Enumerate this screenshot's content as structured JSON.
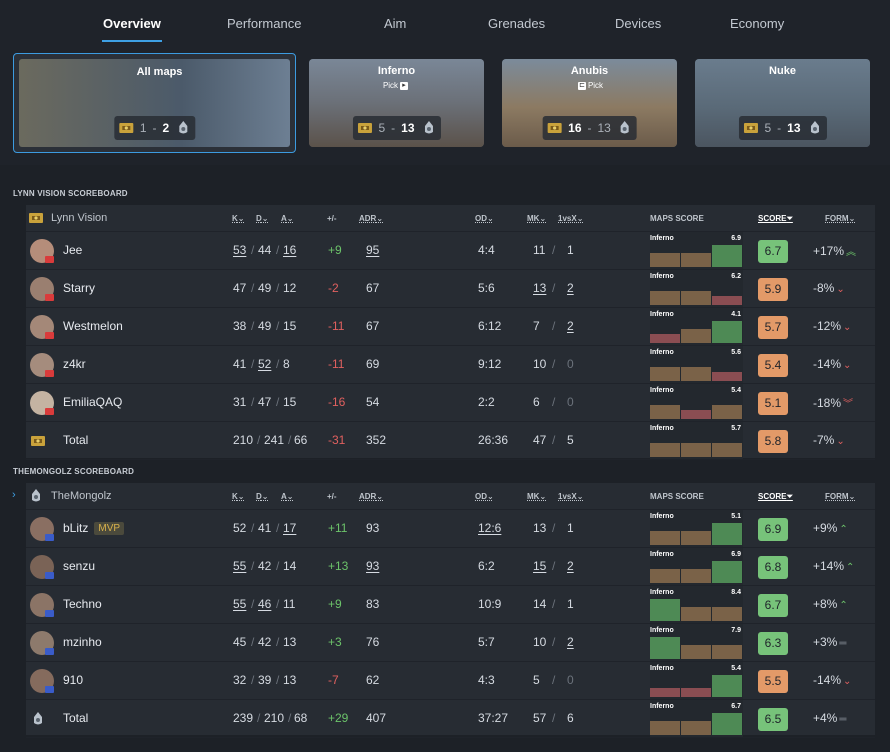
{
  "tabs": [
    "Overview",
    "Performance",
    "Aim",
    "Grenades",
    "Devices",
    "Economy"
  ],
  "maps": [
    {
      "name": "All maps",
      "pick": "",
      "s1": "1",
      "s2": "2",
      "win": "2",
      "selected": true
    },
    {
      "name": "Inferno",
      "pick": "Pick",
      "s1": "5",
      "s2": "13",
      "win": "2"
    },
    {
      "name": "Anubis",
      "pick": "Pick",
      "s1": "16",
      "s2": "13",
      "win": "1"
    },
    {
      "name": "Nuke",
      "pick": "",
      "s1": "5",
      "s2": "13",
      "win": "2"
    }
  ],
  "headers": {
    "k": "K",
    "d": "D",
    "a": "A",
    "pm": "+/-",
    "adr": "ADR",
    "od": "OD",
    "mk": "MK",
    "onevx": "1vsX",
    "maps_score": "MAPS SCORE",
    "score": "SCORE",
    "form": "FORM"
  },
  "lynn": {
    "section": "LYNN VISION SCOREBOARD",
    "team": "Lynn Vision",
    "players": [
      {
        "name": "Jee",
        "k": "53",
        "d": "44",
        "a": "16",
        "pm": "+9",
        "adr": "95",
        "od": "4:4",
        "mk": "11",
        "vx": "1",
        "map": "Inferno",
        "mscore": "6.9",
        "score": "6.7",
        "form": "+17%",
        "trend": "up2",
        "bars": [
          2,
          2,
          3
        ],
        "u": {
          "k": 1,
          "d": 0,
          "a": 1,
          "adr": 1,
          "mk": 0,
          "vx": 0
        }
      },
      {
        "name": "Starry",
        "k": "47",
        "d": "49",
        "a": "12",
        "pm": "-2",
        "adr": "67",
        "od": "5:6",
        "mk": "13",
        "vx": "2",
        "map": "Inferno",
        "mscore": "6.2",
        "score": "5.9",
        "form": "-8%",
        "trend": "down",
        "bars": [
          2,
          2,
          1
        ],
        "u": {
          "mk": 1,
          "vx": 1
        }
      },
      {
        "name": "Westmelon",
        "k": "38",
        "d": "49",
        "a": "15",
        "pm": "-11",
        "adr": "67",
        "od": "6:12",
        "mk": "7",
        "vx": "2",
        "map": "Inferno",
        "mscore": "4.1",
        "score": "5.7",
        "form": "-12%",
        "trend": "down",
        "bars": [
          1,
          2,
          3
        ],
        "u": {
          "vx": 1
        }
      },
      {
        "name": "z4kr",
        "k": "41",
        "d": "52",
        "a": "8",
        "pm": "-11",
        "adr": "69",
        "od": "9:12",
        "mk": "10",
        "vx": "0",
        "map": "Inferno",
        "mscore": "5.6",
        "score": "5.4",
        "form": "-14%",
        "trend": "down",
        "bars": [
          2,
          2,
          1
        ],
        "u": {
          "d": 1
        }
      },
      {
        "name": "EmiliaQAQ",
        "k": "31",
        "d": "47",
        "a": "15",
        "pm": "-16",
        "adr": "54",
        "od": "2:2",
        "mk": "6",
        "vx": "0",
        "map": "Inferno",
        "mscore": "5.4",
        "score": "5.1",
        "form": "-18%",
        "trend": "down2",
        "bars": [
          2,
          1,
          2
        ],
        "u": {}
      }
    ],
    "total": {
      "name": "Total",
      "k": "210",
      "d": "241",
      "a": "66",
      "pm": "-31",
      "adr": "352",
      "od": "26:36",
      "mk": "47",
      "vx": "5",
      "map": "Inferno",
      "mscore": "5.7",
      "score": "5.8",
      "form": "-7%",
      "trend": "down",
      "bars": [
        2,
        2,
        2
      ]
    }
  },
  "mongolz": {
    "section": "THEMONGOLZ SCOREBOARD",
    "team": "TheMongolz",
    "players": [
      {
        "name": "bLitz",
        "mvp": "MVP",
        "k": "52",
        "d": "41",
        "a": "17",
        "pm": "+11",
        "adr": "93",
        "od": "12:6",
        "mk": "13",
        "vx": "1",
        "map": "Inferno",
        "mscore": "5.1",
        "score": "6.9",
        "form": "+9%",
        "trend": "up",
        "bars": [
          2,
          2,
          3
        ],
        "u": {
          "a": 1,
          "od": 1
        }
      },
      {
        "name": "senzu",
        "k": "55",
        "d": "42",
        "a": "14",
        "pm": "+13",
        "adr": "93",
        "od": "6:2",
        "mk": "15",
        "vx": "2",
        "map": "Inferno",
        "mscore": "6.9",
        "score": "6.8",
        "form": "+14%",
        "trend": "up",
        "bars": [
          2,
          2,
          3
        ],
        "u": {
          "k": 1,
          "adr": 1,
          "mk": 1,
          "vx": 1
        }
      },
      {
        "name": "Techno",
        "k": "55",
        "d": "46",
        "a": "11",
        "pm": "+9",
        "adr": "83",
        "od": "10:9",
        "mk": "14",
        "vx": "1",
        "map": "Inferno",
        "mscore": "8.4",
        "score": "6.7",
        "form": "+8%",
        "trend": "up",
        "bars": [
          3,
          2,
          2
        ],
        "u": {
          "k": 1,
          "d": 1
        }
      },
      {
        "name": "mzinho",
        "k": "45",
        "d": "42",
        "a": "13",
        "pm": "+3",
        "adr": "76",
        "od": "5:7",
        "mk": "10",
        "vx": "2",
        "map": "Inferno",
        "mscore": "7.9",
        "score": "6.3",
        "form": "+3%",
        "trend": "eq",
        "bars": [
          3,
          2,
          2
        ],
        "u": {
          "vx": 1
        }
      },
      {
        "name": "910",
        "k": "32",
        "d": "39",
        "a": "13",
        "pm": "-7",
        "adr": "62",
        "od": "4:3",
        "mk": "5",
        "vx": "0",
        "map": "Inferno",
        "mscore": "5.4",
        "score": "5.5",
        "form": "-14%",
        "trend": "down",
        "bars": [
          1,
          1,
          3
        ],
        "u": {}
      }
    ],
    "total": {
      "name": "Total",
      "k": "239",
      "d": "210",
      "a": "68",
      "pm": "+29",
      "adr": "407",
      "od": "37:27",
      "mk": "57",
      "vx": "6",
      "map": "Inferno",
      "mscore": "6.7",
      "score": "6.5",
      "form": "+4%",
      "trend": "eq",
      "bars": [
        2,
        2,
        3
      ]
    }
  },
  "colors": {
    "accent": "#3ea0e4",
    "good": "#6cc36a",
    "bad": "#e0605f",
    "score_green": "#77c37a",
    "score_orange": "#e39a68"
  }
}
